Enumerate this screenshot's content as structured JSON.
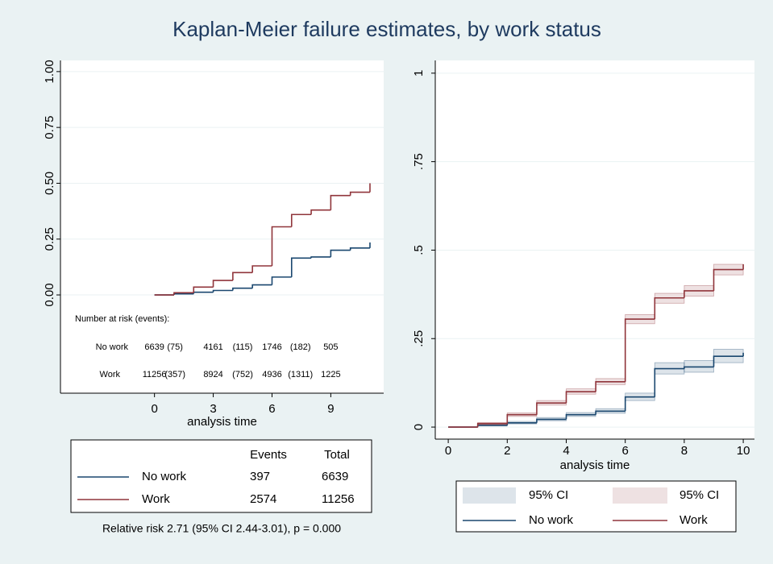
{
  "title": "Kaplan-Meier failure estimates, by work status",
  "chart_data": [
    {
      "type": "step",
      "xlabel": "analysis time",
      "xlim": [
        -4.8,
        11.7
      ],
      "ylim": [
        -0.44,
        1.05
      ],
      "xticks": [
        0,
        3,
        6,
        9
      ],
      "yticks": [
        {
          "value": 0,
          "label": "0.00"
        },
        {
          "value": 0.25,
          "label": "0.25"
        },
        {
          "value": 0.5,
          "label": "0.50"
        },
        {
          "value": 0.75,
          "label": "0.75"
        },
        {
          "value": 1,
          "label": "1.00"
        }
      ],
      "grid": true,
      "x": [
        0,
        1,
        2,
        3,
        4,
        5,
        6,
        7,
        8,
        9,
        10,
        11
      ],
      "series": [
        {
          "name": "No work",
          "color": "#1a476f",
          "values": [
            0,
            0.005,
            0.012,
            0.02,
            0.03,
            0.045,
            0.08,
            0.165,
            0.17,
            0.2,
            0.21,
            0.235
          ]
        },
        {
          "name": "Work",
          "color": "#90353b",
          "values": [
            0,
            0.01,
            0.035,
            0.065,
            0.1,
            0.13,
            0.305,
            0.36,
            0.38,
            0.445,
            0.46,
            0.5
          ]
        }
      ]
    },
    {
      "type": "step",
      "xlabel": "analysis time",
      "xlim": [
        -0.44,
        10.38
      ],
      "ylim": [
        -0.034,
        1.036
      ],
      "xticks": [
        0,
        2,
        4,
        6,
        8,
        10
      ],
      "yticks": [
        0,
        {
          "value": 0.25,
          "label": ".25"
        },
        {
          "value": 0.5,
          "label": ".5"
        },
        {
          "value": 0.75,
          "label": ".75"
        },
        1
      ],
      "grid": true,
      "ci_label": "95% CI",
      "x": [
        0,
        1,
        2,
        3,
        4,
        5,
        6,
        7,
        8,
        9,
        10
      ],
      "series": [
        {
          "name": "No work",
          "color": "#1a476f",
          "values": [
            0,
            0.005,
            0.012,
            0.022,
            0.035,
            0.045,
            0.085,
            0.165,
            0.17,
            0.2,
            0.21
          ],
          "lower": [
            0,
            0.003,
            0.009,
            0.018,
            0.03,
            0.039,
            0.075,
            0.15,
            0.155,
            0.182,
            0.19
          ],
          "upper": [
            0,
            0.007,
            0.016,
            0.027,
            0.041,
            0.052,
            0.096,
            0.182,
            0.188,
            0.22,
            0.232
          ]
        },
        {
          "name": "Work",
          "color": "#90353b",
          "values": [
            0,
            0.01,
            0.035,
            0.068,
            0.1,
            0.128,
            0.305,
            0.365,
            0.385,
            0.445,
            0.46
          ],
          "lower": [
            0,
            0.007,
            0.03,
            0.062,
            0.093,
            0.12,
            0.292,
            0.35,
            0.37,
            0.43,
            0.443
          ],
          "upper": [
            0,
            0.013,
            0.04,
            0.075,
            0.108,
            0.137,
            0.318,
            0.378,
            0.4,
            0.46,
            0.477
          ]
        }
      ]
    }
  ],
  "risk_table": {
    "title": "Number at risk (events):",
    "rows": [
      {
        "label": "No work",
        "cells": [
          "6639",
          "(75)",
          "4161",
          "(115)",
          "1746",
          "(182)",
          "505"
        ]
      },
      {
        "label": "Work",
        "cells": [
          "11256",
          "(357)",
          "8924",
          "(752)",
          "4936",
          "(1311)",
          "1225"
        ]
      }
    ]
  },
  "events_table": {
    "headers": [
      "Events",
      "Total"
    ],
    "rows": [
      {
        "events": 397,
        "total": 6639
      },
      {
        "events": 2574,
        "total": 11256
      }
    ]
  },
  "note": "Relative risk 2.71 (95% CI 2.44-3.01), p = 0.000"
}
